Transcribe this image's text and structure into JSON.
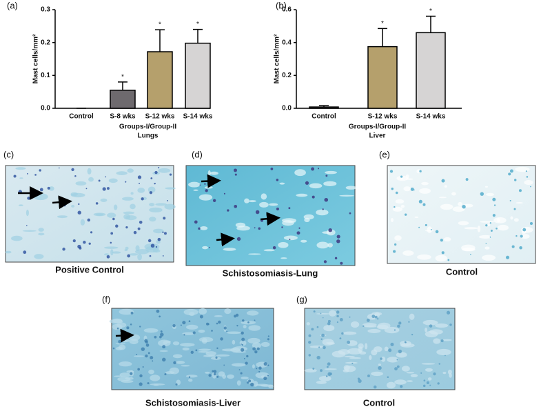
{
  "chart_data": [
    {
      "type": "bar",
      "panel": "(a)",
      "ylabel": "Mast cells/mm²",
      "xlabel": "Groups-I/Group-II",
      "subtitle": "Lungs",
      "categories": [
        "Control",
        "S-8 wks",
        "S-12 wks",
        "S-14 wks"
      ],
      "values": [
        0,
        0.055,
        0.172,
        0.198
      ],
      "errors": [
        0,
        0.025,
        0.067,
        0.042
      ],
      "significance": [
        null,
        "*",
        "*",
        "*"
      ],
      "colors": [
        "#7a7a7a",
        "#6e6a6e",
        "#b5a06c",
        "#d6d4d4"
      ],
      "ylim": [
        0,
        0.3
      ],
      "yticks": [
        {
          "value": 0,
          "label": "0.0"
        },
        0.1,
        0.2,
        0.3
      ]
    },
    {
      "type": "bar",
      "panel": "(b)",
      "ylabel": "Mast cells/mm²",
      "xlabel": "Groups-I/Group-II",
      "subtitle": "Liver",
      "categories": [
        "Control",
        "S-12 wks",
        "S-14 wks"
      ],
      "values": [
        0.008,
        0.375,
        0.46
      ],
      "errors": [
        0.008,
        0.11,
        0.1
      ],
      "significance": [
        null,
        "*",
        "*"
      ],
      "colors": [
        "#555555",
        "#b5a06c",
        "#d6d4d4"
      ],
      "ylim": [
        0,
        0.6
      ],
      "yticks": [
        {
          "value": 0,
          "label": "0.0"
        },
        0.2,
        0.4,
        0.6
      ]
    }
  ],
  "panels": [
    {
      "label": "(c)",
      "caption": "Positive Control"
    },
    {
      "label": "(d)",
      "caption": "Schistosomiasis-Lung"
    },
    {
      "label": "(e)",
      "caption": "Control"
    },
    {
      "label": "(f)",
      "caption": "Schistosomiasis-Liver"
    },
    {
      "label": "(g)",
      "caption": "Control"
    }
  ]
}
